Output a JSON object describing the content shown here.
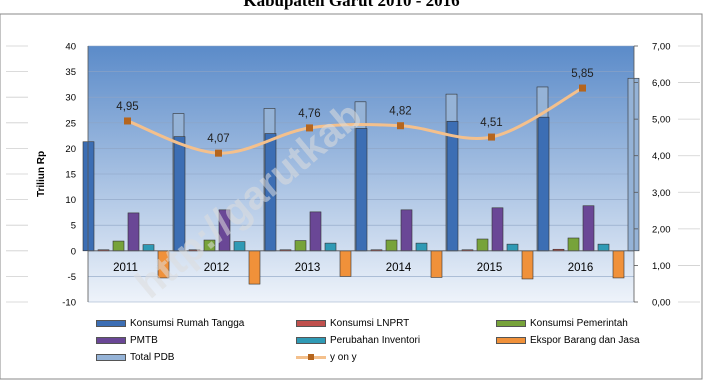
{
  "title": "Kabupaten Garut   2010 - 2016",
  "watermark": "http://garutkab",
  "colors": {
    "plot_top": "#5b8bc9",
    "plot_bottom": "#eef3fa",
    "grid": "#8ea4c4"
  },
  "chart_data": {
    "type": "bar",
    "categories": [
      "2011",
      "2012",
      "2013",
      "2014",
      "2015",
      "2016"
    ],
    "ylabel": "Triliun Rp",
    "ylim": [
      -10,
      40
    ],
    "y_ticks": [
      "40",
      "35",
      "30",
      "25",
      "20",
      "15",
      "10",
      "5",
      "0",
      "-5",
      "-10"
    ],
    "y2lim": [
      0,
      7
    ],
    "y2_ticks": [
      "7,00",
      "6,00",
      "5,00",
      "4,00",
      "3,00",
      "2,00",
      "1,00",
      "0,00"
    ],
    "grid": true,
    "legend_position": "bottom",
    "series": [
      {
        "name": "Konsumsi Rumah Tangga",
        "color": "#3c6eb4",
        "values": [
          21.3,
          22.3,
          22.9,
          23.9,
          25.3,
          26.1
        ]
      },
      {
        "name": "Konsumsi LNPRT",
        "color": "#c0504d",
        "values": [
          0.2,
          0.2,
          0.2,
          0.2,
          0.2,
          0.3
        ]
      },
      {
        "name": "Konsumsi Pemerintah",
        "color": "#77a33a",
        "values": [
          1.9,
          2.1,
          2.0,
          2.1,
          2.3,
          2.5
        ]
      },
      {
        "name": "PMTB",
        "color": "#6a4796",
        "values": [
          7.4,
          8.0,
          7.6,
          8.0,
          8.4,
          8.8
        ]
      },
      {
        "name": "Perubahan Inventori",
        "color": "#2f9ab5",
        "values": [
          1.2,
          1.8,
          1.5,
          1.5,
          1.3,
          1.3
        ]
      },
      {
        "name": "Ekspor Barang dan Jasa",
        "color": "#f0913a",
        "values": [
          -5.3,
          -6.5,
          -5.0,
          -5.2,
          -5.5,
          -5.3
        ]
      },
      {
        "name": "Total PDB",
        "color": "#95b3d7",
        "values": [
          26.8,
          27.8,
          29.1,
          30.6,
          32.0,
          33.7
        ]
      }
    ],
    "line_series": {
      "name": "y on y",
      "axis": "right",
      "values": [
        4.95,
        4.07,
        4.76,
        4.82,
        4.51,
        5.85
      ],
      "labels": [
        "4,95",
        "4,07",
        "4,76",
        "4,82",
        "4,51",
        "5,85"
      ],
      "line_color": "#f4c08c",
      "marker_color": "#b5651d"
    }
  }
}
